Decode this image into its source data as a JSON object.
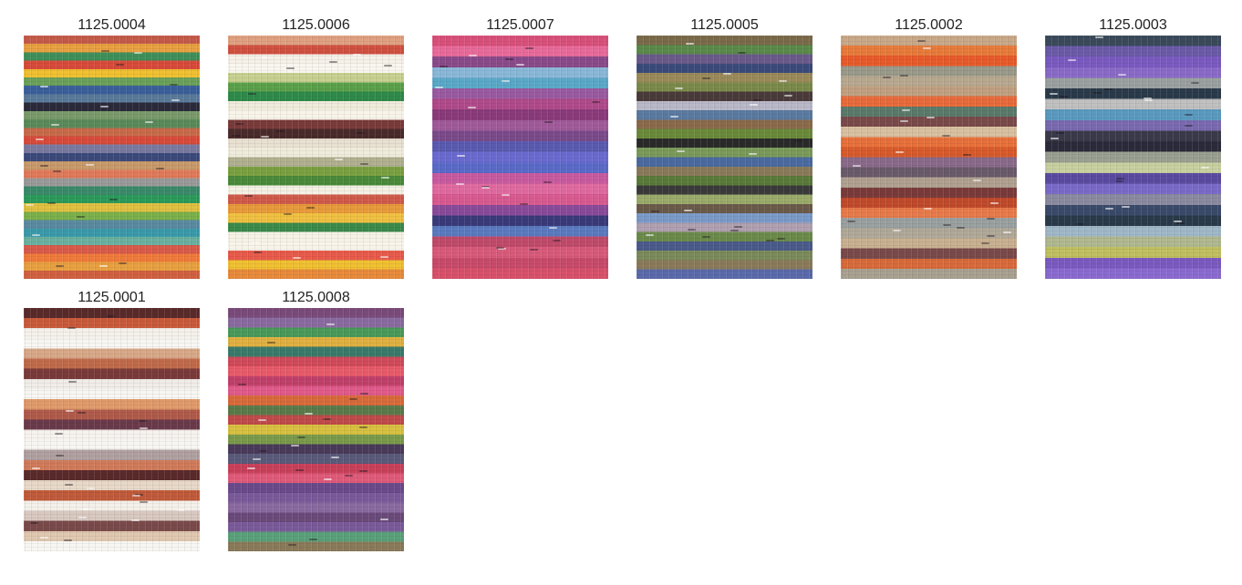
{
  "swatches": [
    {
      "code": "1125.0004",
      "colors": [
        "#c45a4a",
        "#e8a040",
        "#3f8f5a",
        "#d84a3a",
        "#f0c030",
        "#6aa05a",
        "#3a5f9a",
        "#5a7a9a",
        "#2a2a3a",
        "#7a9a6a",
        "#5a8a5a",
        "#c86a4a",
        "#d84a3a",
        "#7a7aa0",
        "#3a4a7a",
        "#c89a6a",
        "#e07a5a",
        "#9a9a9a",
        "#3a8a6a",
        "#2a9a5a",
        "#e0c040",
        "#7ab04a",
        "#5a8aa0",
        "#3a9aaa",
        "#6ab0a0",
        "#d85a4a",
        "#f07a3a",
        "#e8a040",
        "#d06040"
      ]
    },
    {
      "code": "1125.0006",
      "colors": [
        "#e0a080",
        "#d05040",
        "#f5f0e8",
        "#f8f6ee",
        "#c8d090",
        "#5aa04a",
        "#2e8a4a",
        "#f0ecdc",
        "#f8f4ea",
        "#7a3a3a",
        "#4a2a2a",
        "#e8e0d0",
        "#f0ecdc",
        "#b0b090",
        "#7aa040",
        "#4a8a3a",
        "#f4f0e4",
        "#d05a4a",
        "#e89a3a",
        "#f0c040",
        "#3a8a4a",
        "#f6f2e6",
        "#f8f4ea",
        "#e85a4a",
        "#f0c030",
        "#e88a3a"
      ]
    },
    {
      "code": "1125.0007",
      "colors": [
        "#d8507a",
        "#e86a9a",
        "#8a4a8a",
        "#8ab8d8",
        "#5aa8c8",
        "#9a5aa0",
        "#b04a8a",
        "#8a3a7a",
        "#a05a9a",
        "#7a4a8a",
        "#5a5ab0",
        "#6a6ad0",
        "#5a6ac8",
        "#c85aa0",
        "#e06aa0",
        "#d85a90",
        "#8a4a9a",
        "#3a3a7a",
        "#5a7ac0",
        "#c04a6a",
        "#d85a7a",
        "#c84a6a",
        "#d8506a"
      ]
    },
    {
      "code": "1125.0005",
      "colors": [
        "#7a6a4a",
        "#5a8a4a",
        "#6a5a8a",
        "#3a4a7a",
        "#9a8a5a",
        "#7a8a4a",
        "#4a3a3a",
        "#b8b8c8",
        "#5a7aa0",
        "#8a6a4a",
        "#6a8a3a",
        "#2a2a2a",
        "#7a9a5a",
        "#4a6aa0",
        "#8a7a5a",
        "#5a7a3a",
        "#3a3a3a",
        "#9aaa6a",
        "#6a5a4a",
        "#7a9ac8",
        "#b0a0b0",
        "#6a8a4a",
        "#4a5a8a",
        "#7a8a5a",
        "#8a7a5a",
        "#5a6aaa"
      ]
    },
    {
      "code": "1125.0002",
      "colors": [
        "#c8a888",
        "#e87a3a",
        "#e85a2a",
        "#9a9a8a",
        "#b8a890",
        "#c0a080",
        "#e86a3a",
        "#5a7a6a",
        "#7a4a4a",
        "#d8c0a0",
        "#e8703a",
        "#d85a2a",
        "#8a6a8a",
        "#6a5a6a",
        "#b0a090",
        "#7a3a3a",
        "#c04a2a",
        "#e87a4a",
        "#9aa0a0",
        "#b0a898",
        "#c8b090",
        "#7a4a4a",
        "#d86a3a",
        "#a8a090"
      ]
    },
    {
      "code": "1125.0003",
      "colors": [
        "#3a4a5a",
        "#6a5aa8",
        "#7a5ac0",
        "#8a6ac8",
        "#9aa0a0",
        "#2a3a4a",
        "#c0c0c0",
        "#5a9ac0",
        "#7a6ab0",
        "#3a3a4a",
        "#2a2a3a",
        "#9aa090",
        "#c8d0a0",
        "#5a4aa0",
        "#7a6ac8",
        "#8a8aa0",
        "#3a4a6a",
        "#2a3a4a",
        "#a0b8c8",
        "#b0b890",
        "#c0c060",
        "#7a5ac0",
        "#8a6ad0"
      ]
    },
    {
      "code": "1125.0001",
      "colors": [
        "#5a2a2a",
        "#c85a3a",
        "#f4f0ea",
        "#f8f6f2",
        "#d8a888",
        "#c06a4a",
        "#7a3a3a",
        "#f0ece8",
        "#f8f6f2",
        "#e09a6a",
        "#b05a4a",
        "#6a3a4a",
        "#f6f2ee",
        "#f8f6f2",
        "#b0a0a0",
        "#d07a5a",
        "#5a2a2a",
        "#e8d8c8",
        "#c05a3a",
        "#f4f0ea",
        "#d8c8c0",
        "#7a4a4a",
        "#e0c8b0",
        "#f8f6f2"
      ]
    },
    {
      "code": "1125.0008",
      "colors": [
        "#7a4a7a",
        "#8a6aa0",
        "#4a9a5a",
        "#e0b040",
        "#3a7a6a",
        "#d04a5a",
        "#e85a6a",
        "#c0406a",
        "#e05a8a",
        "#d86a3a",
        "#5a7a4a",
        "#c04a4a",
        "#d8c040",
        "#7a9a4a",
        "#4a3a5a",
        "#5a5a7a",
        "#c8405a",
        "#e05a7a",
        "#6a4a8a",
        "#7a5a9a",
        "#8a6aa0",
        "#6a4a7a",
        "#7a5a9a",
        "#5aa07a",
        "#8a7a5a"
      ]
    }
  ]
}
